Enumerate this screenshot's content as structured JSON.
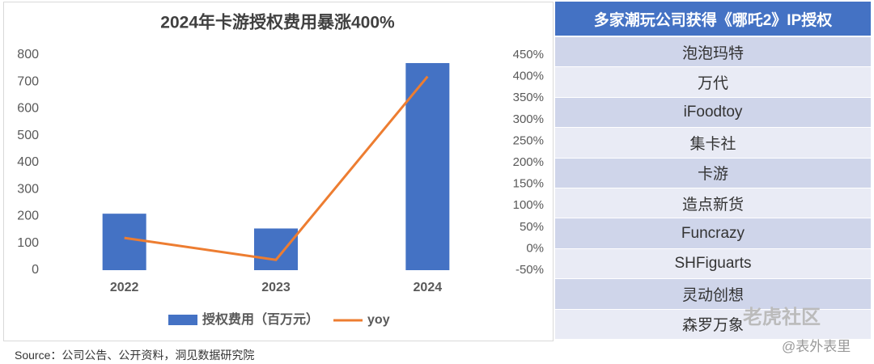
{
  "chart_data": {
    "type": "bar_line",
    "title": "2024年卡游授权费用暴涨400%",
    "categories": [
      "2022",
      "2023",
      "2024"
    ],
    "series": [
      {
        "name": "授权费用（百万元）",
        "type": "bar",
        "color": "#4472c4",
        "values": [
          210,
          155,
          770
        ]
      },
      {
        "name": "yoy",
        "type": "line",
        "axis": "y2",
        "color": "#ed7d31",
        "values": [
          25,
          -26,
          400
        ]
      }
    ],
    "ylim": [
      0,
      800
    ],
    "yticks": [
      0,
      100,
      200,
      300,
      400,
      500,
      600,
      700,
      800
    ],
    "y2lim": [
      -50,
      450
    ],
    "y2ticks": [
      {
        "value": -50,
        "label": "-50%"
      },
      {
        "value": 0,
        "label": "0%"
      },
      {
        "value": 50,
        "label": "50%"
      },
      {
        "value": 100,
        "label": "100%"
      },
      {
        "value": 150,
        "label": "150%"
      },
      {
        "value": 200,
        "label": "200%"
      },
      {
        "value": 250,
        "label": "250%"
      },
      {
        "value": 300,
        "label": "300%"
      },
      {
        "value": 350,
        "label": "350%"
      },
      {
        "value": 400,
        "label": "400%"
      },
      {
        "value": 450,
        "label": "450%"
      }
    ],
    "grid": false,
    "legend": "bottom"
  },
  "table": {
    "title": "多家潮玩公司获得《哪吒2》IP授权",
    "rows": [
      "泡泡玛特",
      "万代",
      "iFoodtoy",
      "集卡社",
      "卡游",
      "造点新货",
      "Funcrazy",
      "SHFiguarts",
      "灵动创想",
      "森罗万象"
    ]
  },
  "source": "Source：公司公告、公开资料，洞见数据研究院",
  "watermarks": [
    "老虎社区",
    "@表外表里"
  ]
}
